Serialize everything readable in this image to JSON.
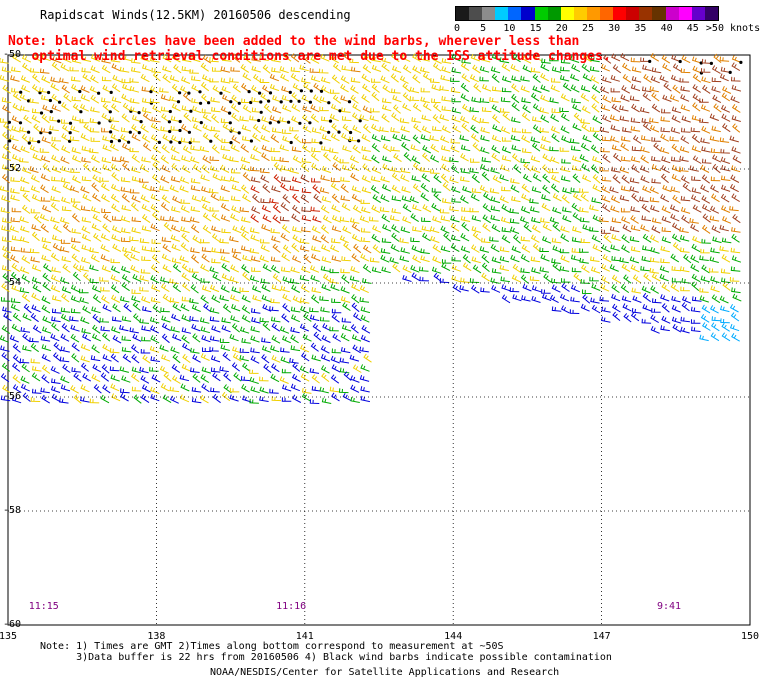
{
  "title": "Rapidscat Winds(12.5KM) 20160506 descending",
  "legend": {
    "labels": [
      "0",
      "5",
      "10",
      "15",
      "20",
      "25",
      "30",
      "35",
      "40",
      "45",
      ">50 knots"
    ],
    "colors": [
      "#1a1a1a",
      "#4d4d4d",
      "#8c8c8c",
      "#00ccff",
      "#0066ff",
      "#0000cc",
      "#00cc00",
      "#009900",
      "#ffff00",
      "#ffcc00",
      "#ff9900",
      "#ff6600",
      "#ff0000",
      "#cc0000",
      "#993300",
      "#663300",
      "#cc00cc",
      "#ff00ff",
      "#6600cc",
      "#330066"
    ]
  },
  "note": {
    "line1": "Note: black circles have been added to the wind barbs, wherever less than",
    "line2": "   optimal wind retrieval conditions are met due to the ISS attitude changes."
  },
  "axes": {
    "lon_labels": [
      "135",
      "138",
      "141",
      "144",
      "147",
      "150"
    ],
    "lat_labels": [
      "-50",
      "-52",
      "-54",
      "-56",
      "-58",
      "-60"
    ],
    "lon_range": [
      135,
      150
    ],
    "lat_range": [
      -60,
      -50
    ]
  },
  "time_labels": [
    {
      "text": "11:15",
      "lon": 135.5
    },
    {
      "text": "11:16",
      "lon": 140.5
    },
    {
      "text": "9:41",
      "lon": 148.2
    }
  ],
  "footer": {
    "line1": "Note: 1) Times are GMT 2)Times along bottom correspond to measurement at ~50S",
    "line2": "      3)Data buffer is 22 hrs from 20160506 4) Black wind barbs indicate possible contamination",
    "line3": "NOAA/NESDIS/Center for Satellite Applications and Research"
  },
  "wind_colors": {
    "blue": "#0000dd",
    "lightblue": "#00aaff",
    "green": "#00aa00",
    "yellow": "#f0d000",
    "orange": "#e08000",
    "red": "#cc2000",
    "brown": "#a04020",
    "black": "#000000"
  }
}
